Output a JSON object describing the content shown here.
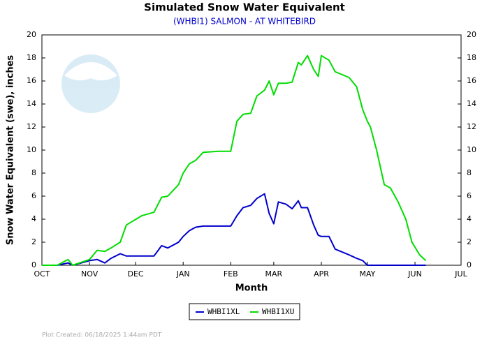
{
  "chart_data": {
    "type": "line",
    "title": "Simulated Snow Water Equivalent",
    "subtitle": "(WHBI1) SALMON - AT WHITEBIRD",
    "x_label": "Month",
    "y_label": "Snow Water Equivalent (swe),  inches",
    "footer": "Plot Created: 06/18/2025 1:44am PDT",
    "x": [
      0,
      10,
      17,
      20,
      31,
      36,
      41,
      45,
      51,
      55,
      65,
      73,
      78,
      82,
      89,
      92,
      96,
      100,
      105,
      115,
      123,
      127,
      131,
      136,
      140,
      145,
      148,
      151,
      154,
      159,
      163,
      167,
      169,
      173,
      177,
      180,
      182,
      187,
      191,
      200,
      205,
      209,
      212,
      214,
      218,
      223,
      227,
      232,
      237,
      241,
      246,
      250
    ],
    "xlim": [
      0,
      273
    ],
    "xticks": [
      {
        "value": 0,
        "label": "OCT"
      },
      {
        "value": 31,
        "label": "NOV"
      },
      {
        "value": 61,
        "label": "DEC"
      },
      {
        "value": 92,
        "label": "JAN"
      },
      {
        "value": 123,
        "label": "FEB"
      },
      {
        "value": 151,
        "label": "MAR"
      },
      {
        "value": 182,
        "label": "APR"
      },
      {
        "value": 212,
        "label": "MAY"
      },
      {
        "value": 243,
        "label": "JUN"
      },
      {
        "value": 273,
        "label": "JUL"
      }
    ],
    "ylim": [
      0,
      20
    ],
    "yticks": [
      0,
      2,
      4,
      6,
      8,
      10,
      12,
      14,
      16,
      18,
      20
    ],
    "grid": false,
    "legend_position": "bottom",
    "series": [
      {
        "name": "WHBI1XL",
        "color": "#0000cc",
        "values": [
          0,
          0,
          0.2,
          0,
          0.4,
          0.5,
          0.2,
          0.6,
          1.0,
          0.8,
          0.8,
          0.8,
          1.7,
          1.5,
          2.0,
          2.5,
          3.0,
          3.3,
          3.4,
          3.4,
          3.4,
          4.3,
          5.0,
          5.2,
          5.8,
          6.2,
          4.5,
          3.6,
          5.5,
          5.3,
          4.9,
          5.6,
          5.0,
          5.0,
          3.5,
          2.6,
          2.5,
          2.5,
          1.4,
          0.9,
          0.6,
          0.4,
          0,
          0,
          0,
          0,
          0,
          0,
          0,
          0,
          0,
          0
        ]
      },
      {
        "name": "WHBI1XU",
        "color": "#00dd00",
        "values": [
          0,
          0,
          0.5,
          0,
          0.5,
          1.3,
          1.2,
          1.5,
          2.0,
          3.5,
          4.3,
          4.6,
          5.9,
          6.0,
          7.0,
          8.0,
          8.8,
          9.1,
          9.8,
          9.9,
          9.9,
          12.5,
          13.1,
          13.2,
          14.7,
          15.2,
          16.0,
          14.8,
          15.8,
          15.8,
          15.9,
          17.6,
          17.4,
          18.2,
          17.0,
          16.4,
          18.2,
          17.8,
          16.8,
          16.3,
          15.5,
          13.5,
          12.5,
          12.0,
          10.0,
          7.0,
          6.7,
          5.5,
          4.0,
          2.0,
          0.9,
          0.4
        ]
      }
    ]
  }
}
